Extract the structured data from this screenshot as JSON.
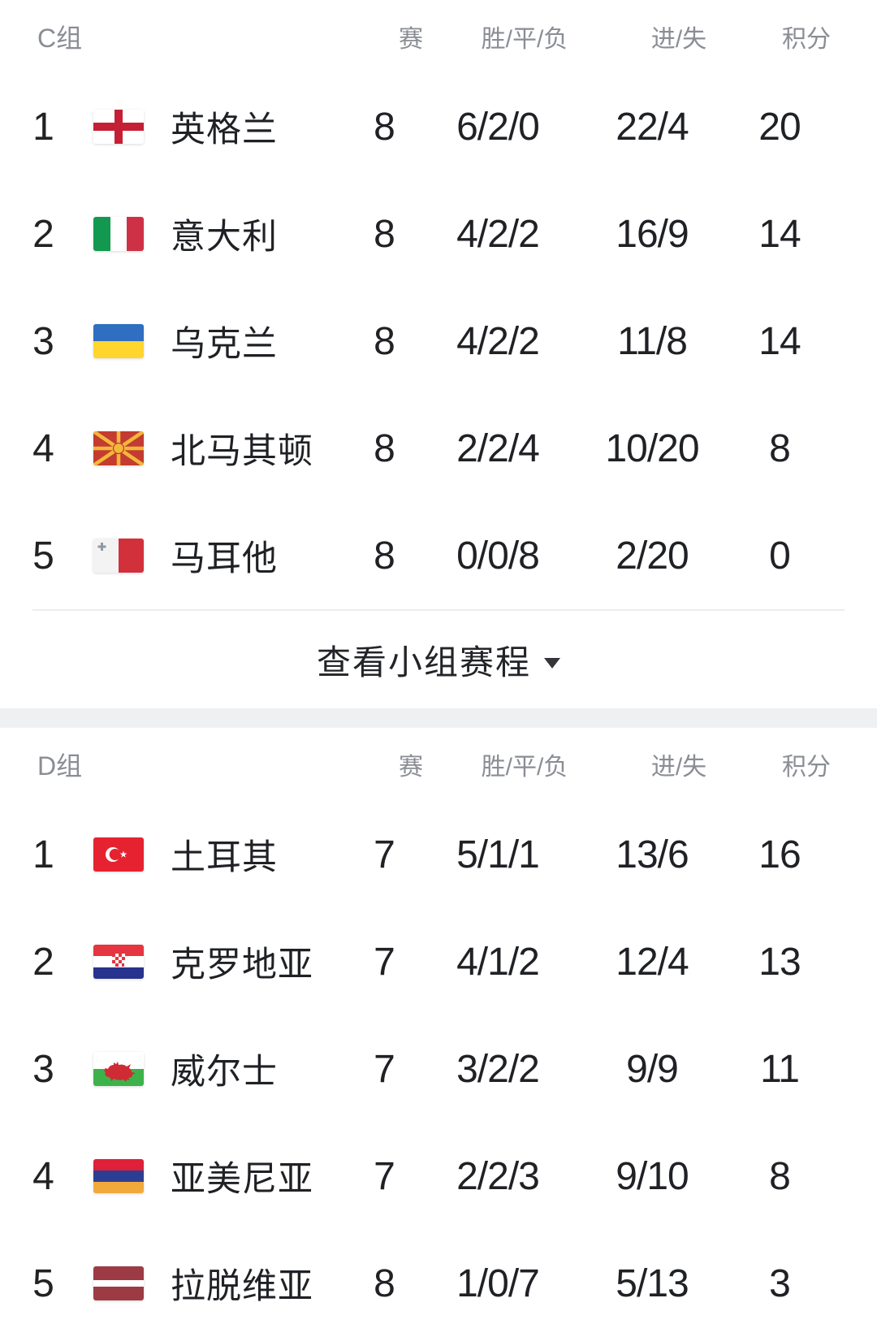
{
  "colors": {
    "header_text": "#8a8d94",
    "body_text": "#1f2125",
    "divider": "#ededee",
    "section_gap_band": "#eef0f1",
    "accent_red": "#C51F35"
  },
  "schedule_button": {
    "label": "查看小组赛程",
    "caret_icon": "chevron-down-icon"
  },
  "groups": [
    {
      "name": "C组",
      "columns": {
        "played": "赛",
        "wdl": "胜/平/负",
        "goals": "进/失",
        "points": "积分"
      },
      "rows": [
        {
          "rank": "1",
          "team": "英格兰",
          "flag": "england-flag-icon",
          "played": "8",
          "wdl": "6/2/0",
          "goals": "22/4",
          "points": "20"
        },
        {
          "rank": "2",
          "team": "意大利",
          "flag": "italy-flag-icon",
          "played": "8",
          "wdl": "4/2/2",
          "goals": "16/9",
          "points": "14"
        },
        {
          "rank": "3",
          "team": "乌克兰",
          "flag": "ukraine-flag-icon",
          "played": "8",
          "wdl": "4/2/2",
          "goals": "11/8",
          "points": "14"
        },
        {
          "rank": "4",
          "team": "北马其顿",
          "flag": "north-macedonia-flag-icon",
          "played": "8",
          "wdl": "2/2/4",
          "goals": "10/20",
          "points": "8"
        },
        {
          "rank": "5",
          "team": "马耳他",
          "flag": "malta-flag-icon",
          "played": "8",
          "wdl": "0/0/8",
          "goals": "2/20",
          "points": "0"
        }
      ],
      "has_footer_button": true
    },
    {
      "name": "D组",
      "columns": {
        "played": "赛",
        "wdl": "胜/平/负",
        "goals": "进/失",
        "points": "积分"
      },
      "rows": [
        {
          "rank": "1",
          "team": "土耳其",
          "flag": "turkey-flag-icon",
          "played": "7",
          "wdl": "5/1/1",
          "goals": "13/6",
          "points": "16"
        },
        {
          "rank": "2",
          "team": "克罗地亚",
          "flag": "croatia-flag-icon",
          "played": "7",
          "wdl": "4/1/2",
          "goals": "12/4",
          "points": "13"
        },
        {
          "rank": "3",
          "team": "威尔士",
          "flag": "wales-flag-icon",
          "played": "7",
          "wdl": "3/2/2",
          "goals": "9/9",
          "points": "11"
        },
        {
          "rank": "4",
          "team": "亚美尼亚",
          "flag": "armenia-flag-icon",
          "played": "7",
          "wdl": "2/2/3",
          "goals": "9/10",
          "points": "8"
        },
        {
          "rank": "5",
          "team": "拉脱维亚",
          "flag": "latvia-flag-icon",
          "played": "8",
          "wdl": "1/0/7",
          "goals": "5/13",
          "points": "3"
        }
      ],
      "has_footer_button": false
    }
  ]
}
